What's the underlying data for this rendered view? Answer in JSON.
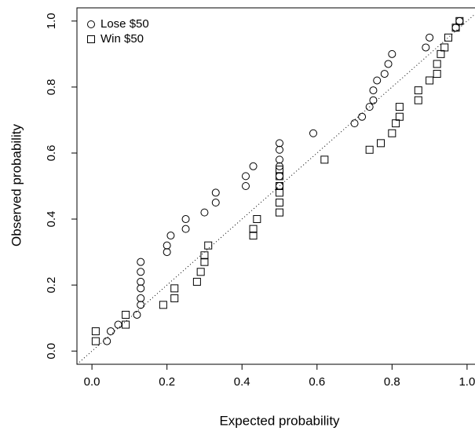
{
  "chart_data": {
    "type": "scatter",
    "x_label": "Expected probability",
    "y_label": "Observed probability",
    "xlim": [
      -0.04,
      1.04
    ],
    "ylim": [
      -0.04,
      1.04
    ],
    "xticks": [
      {
        "value": 0,
        "label": "0.0"
      },
      0.2,
      0.4,
      0.6,
      0.8,
      {
        "value": 1,
        "label": "1.0"
      }
    ],
    "yticks": [
      {
        "value": 0,
        "label": "0.0"
      },
      0.2,
      0.4,
      0.6,
      0.8,
      {
        "value": 1,
        "label": "1.0"
      }
    ],
    "legend": "top-left",
    "series": [
      {
        "name": "Lose $50",
        "color": "#000000",
        "marker": "circle",
        "x": [
          0.04,
          0.05,
          0.07,
          0.12,
          0.13,
          0.13,
          0.13,
          0.13,
          0.13,
          0.13,
          0.2,
          0.2,
          0.21,
          0.25,
          0.25,
          0.3,
          0.33,
          0.33,
          0.41,
          0.41,
          0.43,
          0.5,
          0.5,
          0.5,
          0.5,
          0.5,
          0.5,
          0.59,
          0.7,
          0.72,
          0.74,
          0.75,
          0.75,
          0.76,
          0.78,
          0.79,
          0.8,
          0.89,
          0.9,
          0.97,
          0.98
        ],
        "values": [
          0.03,
          0.06,
          0.08,
          0.11,
          0.14,
          0.16,
          0.19,
          0.21,
          0.24,
          0.27,
          0.3,
          0.32,
          0.35,
          0.37,
          0.4,
          0.42,
          0.45,
          0.48,
          0.5,
          0.53,
          0.56,
          0.5,
          0.53,
          0.56,
          0.58,
          0.61,
          0.63,
          0.66,
          0.69,
          0.71,
          0.74,
          0.76,
          0.79,
          0.82,
          0.84,
          0.87,
          0.9,
          0.92,
          0.95,
          0.98,
          1.0
        ]
      },
      {
        "name": "Win $50",
        "color": "#000000",
        "marker": "square",
        "x": [
          0.01,
          0.01,
          0.09,
          0.09,
          0.19,
          0.22,
          0.22,
          0.28,
          0.29,
          0.3,
          0.3,
          0.31,
          0.43,
          0.43,
          0.44,
          0.5,
          0.5,
          0.5,
          0.5,
          0.5,
          0.5,
          0.62,
          0.74,
          0.77,
          0.8,
          0.81,
          0.82,
          0.82,
          0.87,
          0.87,
          0.9,
          0.92,
          0.92,
          0.93,
          0.94,
          0.95,
          0.97,
          0.98
        ],
        "values": [
          0.03,
          0.06,
          0.08,
          0.11,
          0.14,
          0.16,
          0.19,
          0.21,
          0.24,
          0.27,
          0.29,
          0.32,
          0.35,
          0.37,
          0.4,
          0.42,
          0.45,
          0.48,
          0.5,
          0.53,
          0.55,
          0.58,
          0.61,
          0.63,
          0.66,
          0.69,
          0.71,
          0.74,
          0.76,
          0.79,
          0.82,
          0.84,
          0.87,
          0.9,
          0.92,
          0.95,
          0.98,
          1.0
        ]
      }
    ]
  }
}
